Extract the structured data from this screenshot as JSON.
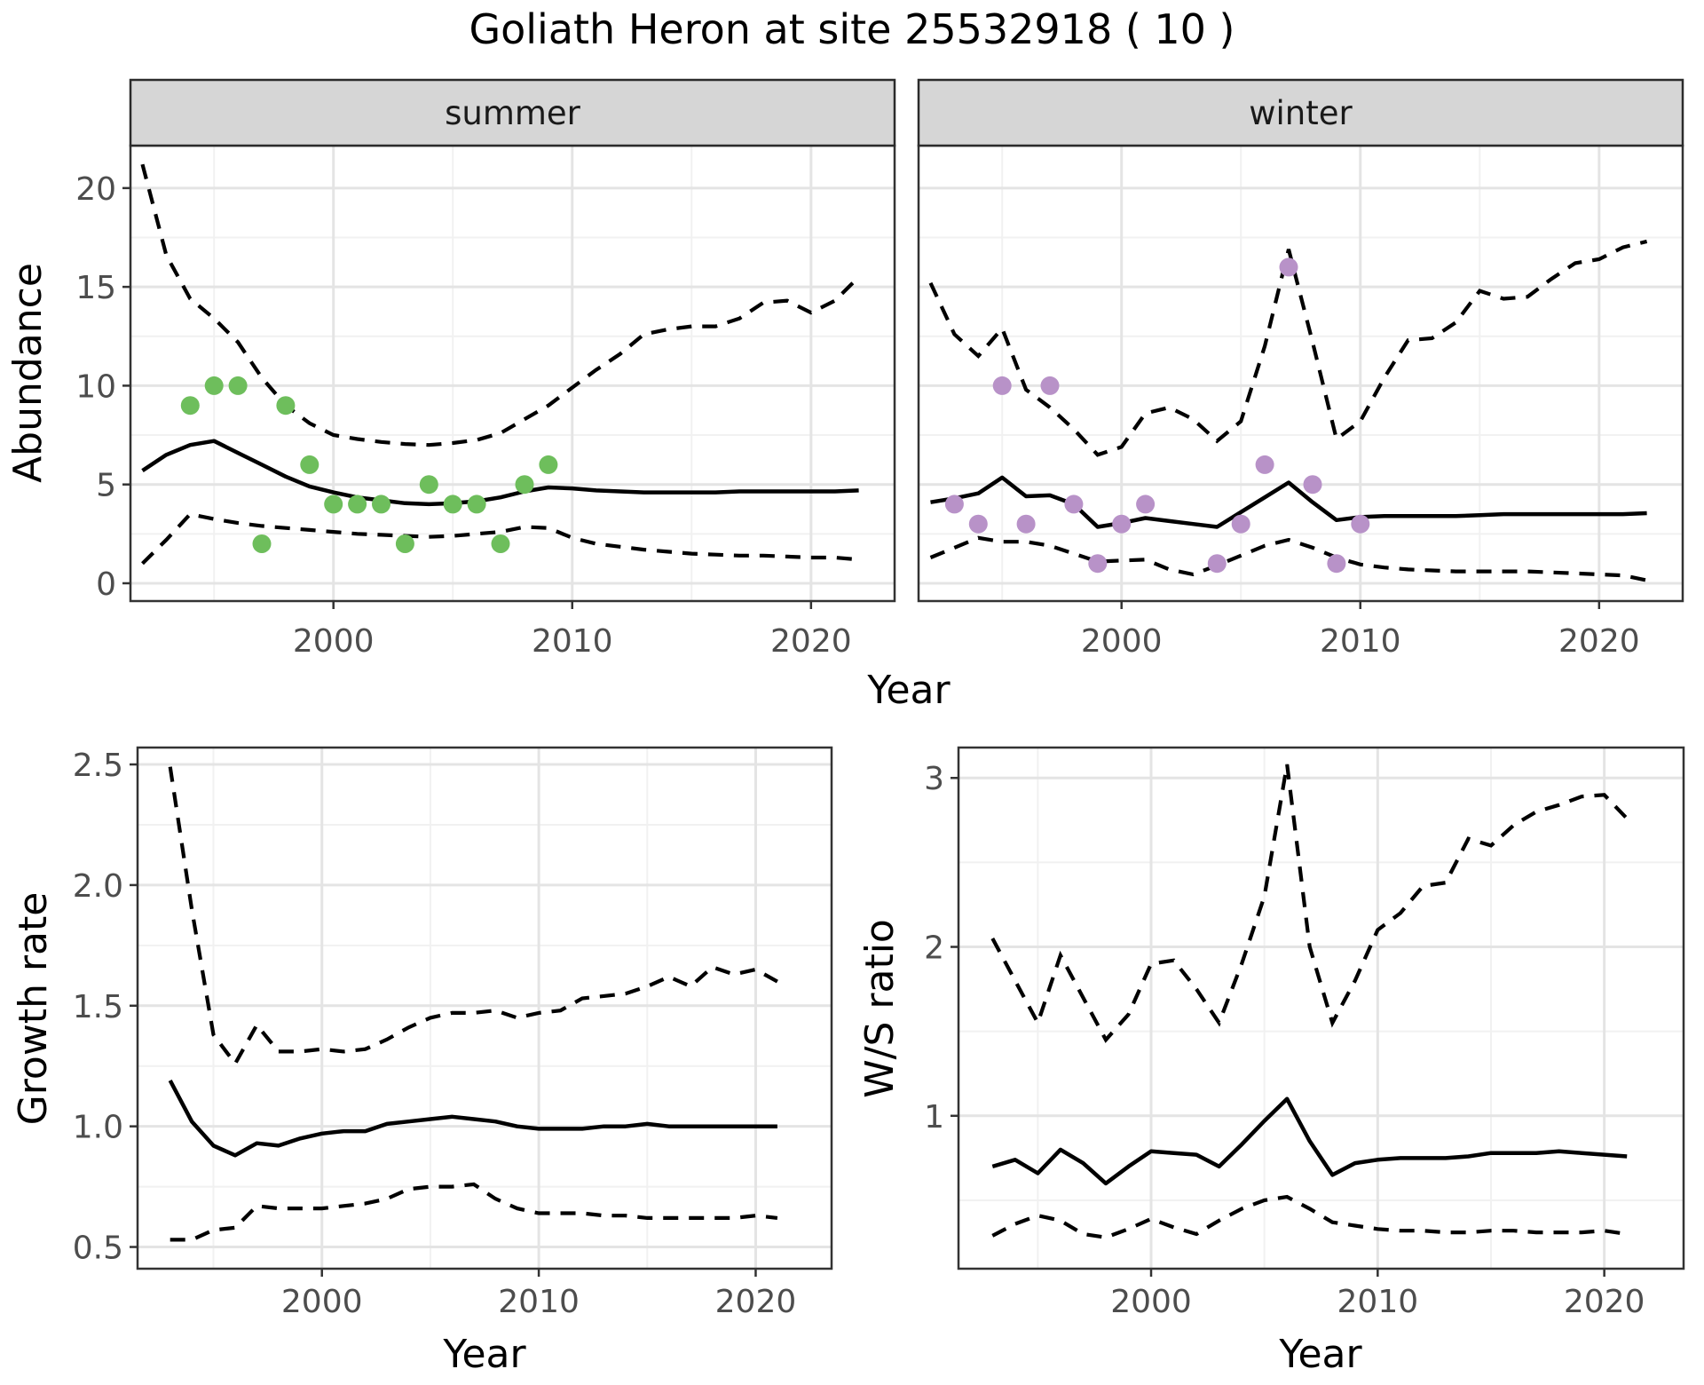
{
  "title": "Goliath Heron at site 25532918 ( 10 )",
  "colors": {
    "summer_points": "#6ebe5c",
    "winter_points": "#b892c8",
    "line": "#000000",
    "strip_bg": "#d6d6d6",
    "strip_border": "#2b2b2b",
    "panel_border": "#333333",
    "grid_major": "#e4e4e4",
    "grid_minor": "#f1f1f1",
    "tick_label": "#4d4d4d",
    "axis_title": "#000000"
  },
  "chart_data": [
    {
      "id": "abundance_summer",
      "type": "line",
      "facet": "summer",
      "xlabel": "Year",
      "ylabel": "Abundance",
      "xlim": [
        1991.5,
        2023.5
      ],
      "ylim": [
        -0.9,
        22.15
      ],
      "xtick_values": [
        2000,
        2010,
        2020
      ],
      "xtick_labels": [
        "2000",
        "2010",
        "2020"
      ],
      "xminor": [
        1995,
        2005,
        2015
      ],
      "ytick_values": [
        0,
        5,
        10,
        15,
        20
      ],
      "ytick_labels": [
        "0",
        "5",
        "10",
        "15",
        "20"
      ],
      "yminor": [
        2.5,
        7.5,
        12.5,
        17.5
      ],
      "years": [
        1992,
        1993,
        1994,
        1995,
        1996,
        1997,
        1998,
        1999,
        2000,
        2001,
        2002,
        2003,
        2004,
        2005,
        2006,
        2007,
        2008,
        2009,
        2010,
        2011,
        2012,
        2013,
        2014,
        2015,
        2016,
        2017,
        2018,
        2019,
        2020,
        2021,
        2022
      ],
      "median": [
        5.7,
        6.5,
        7.0,
        7.2,
        6.6,
        6.0,
        5.4,
        4.9,
        4.6,
        4.35,
        4.2,
        4.05,
        4.0,
        4.05,
        4.15,
        4.35,
        4.65,
        4.85,
        4.8,
        4.7,
        4.65,
        4.6,
        4.6,
        4.6,
        4.6,
        4.65,
        4.65,
        4.65,
        4.65,
        4.65,
        4.7
      ],
      "upper": [
        21.2,
        16.6,
        14.4,
        13.4,
        12.2,
        10.4,
        9.0,
        8.1,
        7.5,
        7.3,
        7.15,
        7.05,
        7.0,
        7.1,
        7.25,
        7.6,
        8.3,
        9.0,
        9.9,
        10.8,
        11.6,
        12.6,
        12.85,
        13.0,
        13.0,
        13.4,
        14.2,
        14.3,
        13.7,
        14.3,
        15.5
      ],
      "lower": [
        1.0,
        2.2,
        3.5,
        3.25,
        3.05,
        2.9,
        2.8,
        2.7,
        2.6,
        2.5,
        2.45,
        2.4,
        2.35,
        2.4,
        2.5,
        2.6,
        2.85,
        2.8,
        2.3,
        2.0,
        1.85,
        1.7,
        1.6,
        1.5,
        1.45,
        1.4,
        1.4,
        1.35,
        1.3,
        1.3,
        1.2
      ],
      "obs_years": [
        1994,
        1995,
        1996,
        1997,
        1998,
        1999,
        2000,
        2001,
        2002,
        2003,
        2004,
        2005,
        2006,
        2007,
        2008,
        2009
      ],
      "obs_values": [
        9,
        10,
        10,
        2,
        9,
        6,
        4,
        4,
        4,
        2,
        5,
        4,
        4,
        2,
        5,
        6
      ],
      "point_color": "#6ebe5c"
    },
    {
      "id": "abundance_winter",
      "type": "line",
      "facet": "winter",
      "xlabel": "Year",
      "ylabel": "Abundance",
      "xlim": [
        1991.5,
        2023.5
      ],
      "ylim": [
        -0.9,
        22.15
      ],
      "xtick_values": [
        2000,
        2010,
        2020
      ],
      "xtick_labels": [
        "2000",
        "2010",
        "2020"
      ],
      "xminor": [
        1995,
        2005,
        2015
      ],
      "ytick_values": [
        0,
        5,
        10,
        15,
        20
      ],
      "ytick_labels": [
        "0",
        "5",
        "10",
        "15",
        "20"
      ],
      "yminor": [
        2.5,
        7.5,
        12.5,
        17.5
      ],
      "years": [
        1992,
        1993,
        1994,
        1995,
        1996,
        1997,
        1998,
        1999,
        2000,
        2001,
        2002,
        2003,
        2004,
        2005,
        2006,
        2007,
        2008,
        2009,
        2010,
        2011,
        2012,
        2013,
        2014,
        2015,
        2016,
        2017,
        2018,
        2019,
        2020,
        2021,
        2022
      ],
      "median": [
        4.1,
        4.3,
        4.55,
        5.35,
        4.4,
        4.45,
        4.0,
        2.85,
        3.05,
        3.3,
        3.15,
        3.0,
        2.85,
        3.6,
        4.35,
        5.1,
        4.1,
        3.2,
        3.35,
        3.4,
        3.4,
        3.4,
        3.4,
        3.45,
        3.5,
        3.5,
        3.5,
        3.5,
        3.5,
        3.5,
        3.55
      ],
      "upper": [
        15.2,
        12.6,
        11.5,
        12.9,
        9.8,
        8.9,
        7.8,
        6.5,
        6.9,
        8.6,
        8.9,
        8.3,
        7.2,
        8.2,
        12.0,
        16.9,
        12.2,
        7.3,
        8.2,
        10.4,
        12.3,
        12.4,
        13.2,
        14.8,
        14.4,
        14.5,
        15.4,
        16.2,
        16.4,
        17.0,
        17.3
      ],
      "lower": [
        1.3,
        1.8,
        2.3,
        2.1,
        2.1,
        1.9,
        1.5,
        1.1,
        1.15,
        1.2,
        0.7,
        0.45,
        0.9,
        1.4,
        1.9,
        2.2,
        1.8,
        1.3,
        0.95,
        0.8,
        0.7,
        0.65,
        0.6,
        0.6,
        0.6,
        0.6,
        0.55,
        0.5,
        0.45,
        0.4,
        0.15
      ],
      "obs_years": [
        1993,
        1994,
        1995,
        1996,
        1997,
        1998,
        1999,
        2000,
        2001,
        2004,
        2005,
        2006,
        2007,
        2008,
        2009,
        2010
      ],
      "obs_values": [
        4,
        3,
        10,
        3,
        10,
        4,
        1,
        3,
        4,
        1,
        3,
        6,
        16,
        5,
        1,
        3
      ],
      "point_color": "#b892c8"
    },
    {
      "id": "growth_rate",
      "type": "line",
      "xlabel": "Year",
      "ylabel": "Growth rate",
      "xlim": [
        1991.5,
        2023.5
      ],
      "ylim": [
        0.41,
        2.57
      ],
      "xtick_values": [
        2000,
        2010,
        2020
      ],
      "xtick_labels": [
        "2000",
        "2010",
        "2020"
      ],
      "xminor": [
        1995,
        2005,
        2015
      ],
      "ytick_values": [
        0.5,
        1.0,
        1.5,
        2.0,
        2.5
      ],
      "ytick_labels": [
        "0.5",
        "1.0",
        "1.5",
        "2.0",
        "2.5"
      ],
      "yminor": [
        0.75,
        1.25,
        1.75,
        2.25
      ],
      "years": [
        1993,
        1994,
        1995,
        1996,
        1997,
        1998,
        1999,
        2000,
        2001,
        2002,
        2003,
        2004,
        2005,
        2006,
        2007,
        2008,
        2009,
        2010,
        2011,
        2012,
        2013,
        2014,
        2015,
        2016,
        2017,
        2018,
        2019,
        2020,
        2021
      ],
      "median": [
        1.19,
        1.02,
        0.92,
        0.88,
        0.93,
        0.92,
        0.95,
        0.97,
        0.98,
        0.98,
        1.01,
        1.02,
        1.03,
        1.04,
        1.03,
        1.02,
        1.0,
        0.99,
        0.99,
        0.99,
        1.0,
        1.0,
        1.01,
        1.0,
        1.0,
        1.0,
        1.0,
        1.0,
        1.0
      ],
      "upper": [
        2.49,
        1.9,
        1.38,
        1.26,
        1.42,
        1.31,
        1.31,
        1.32,
        1.31,
        1.32,
        1.36,
        1.41,
        1.45,
        1.47,
        1.47,
        1.48,
        1.45,
        1.47,
        1.48,
        1.53,
        1.54,
        1.55,
        1.58,
        1.62,
        1.58,
        1.66,
        1.63,
        1.65,
        1.6
      ],
      "lower": [
        0.53,
        0.53,
        0.57,
        0.58,
        0.67,
        0.66,
        0.66,
        0.66,
        0.67,
        0.68,
        0.7,
        0.74,
        0.75,
        0.75,
        0.76,
        0.7,
        0.66,
        0.64,
        0.64,
        0.64,
        0.63,
        0.63,
        0.62,
        0.62,
        0.62,
        0.62,
        0.62,
        0.63,
        0.62
      ]
    },
    {
      "id": "ws_ratio",
      "type": "line",
      "xlabel": "Year",
      "ylabel": "W/S ratio",
      "xlim": [
        1991.5,
        2023.5
      ],
      "ylim": [
        0.095,
        3.18
      ],
      "xtick_values": [
        2000,
        2010,
        2020
      ],
      "xtick_labels": [
        "2000",
        "2010",
        "2020"
      ],
      "xminor": [
        1995,
        2005,
        2015
      ],
      "ytick_values": [
        1,
        2,
        3
      ],
      "ytick_labels": [
        "1",
        "2",
        "3"
      ],
      "yminor": [
        0.5,
        1.5,
        2.5
      ],
      "years": [
        1993,
        1994,
        1995,
        1996,
        1997,
        1998,
        1999,
        2000,
        2001,
        2002,
        2003,
        2004,
        2005,
        2006,
        2007,
        2008,
        2009,
        2010,
        2011,
        2012,
        2013,
        2014,
        2015,
        2016,
        2017,
        2018,
        2019,
        2020,
        2021
      ],
      "median": [
        0.7,
        0.74,
        0.66,
        0.8,
        0.72,
        0.6,
        0.7,
        0.79,
        0.78,
        0.77,
        0.7,
        0.83,
        0.97,
        1.1,
        0.85,
        0.65,
        0.72,
        0.74,
        0.75,
        0.75,
        0.75,
        0.76,
        0.78,
        0.78,
        0.78,
        0.79,
        0.78,
        0.77,
        0.76
      ],
      "upper": [
        2.05,
        1.8,
        1.55,
        1.95,
        1.7,
        1.45,
        1.6,
        1.9,
        1.92,
        1.75,
        1.55,
        1.9,
        2.3,
        3.08,
        2.0,
        1.55,
        1.8,
        2.1,
        2.2,
        2.36,
        2.38,
        2.64,
        2.6,
        2.72,
        2.8,
        2.84,
        2.89,
        2.9,
        2.76
      ],
      "lower": [
        0.29,
        0.36,
        0.41,
        0.38,
        0.3,
        0.28,
        0.33,
        0.39,
        0.34,
        0.3,
        0.38,
        0.45,
        0.5,
        0.52,
        0.45,
        0.37,
        0.35,
        0.33,
        0.32,
        0.32,
        0.31,
        0.31,
        0.32,
        0.32,
        0.31,
        0.31,
        0.31,
        0.32,
        0.3
      ]
    }
  ]
}
